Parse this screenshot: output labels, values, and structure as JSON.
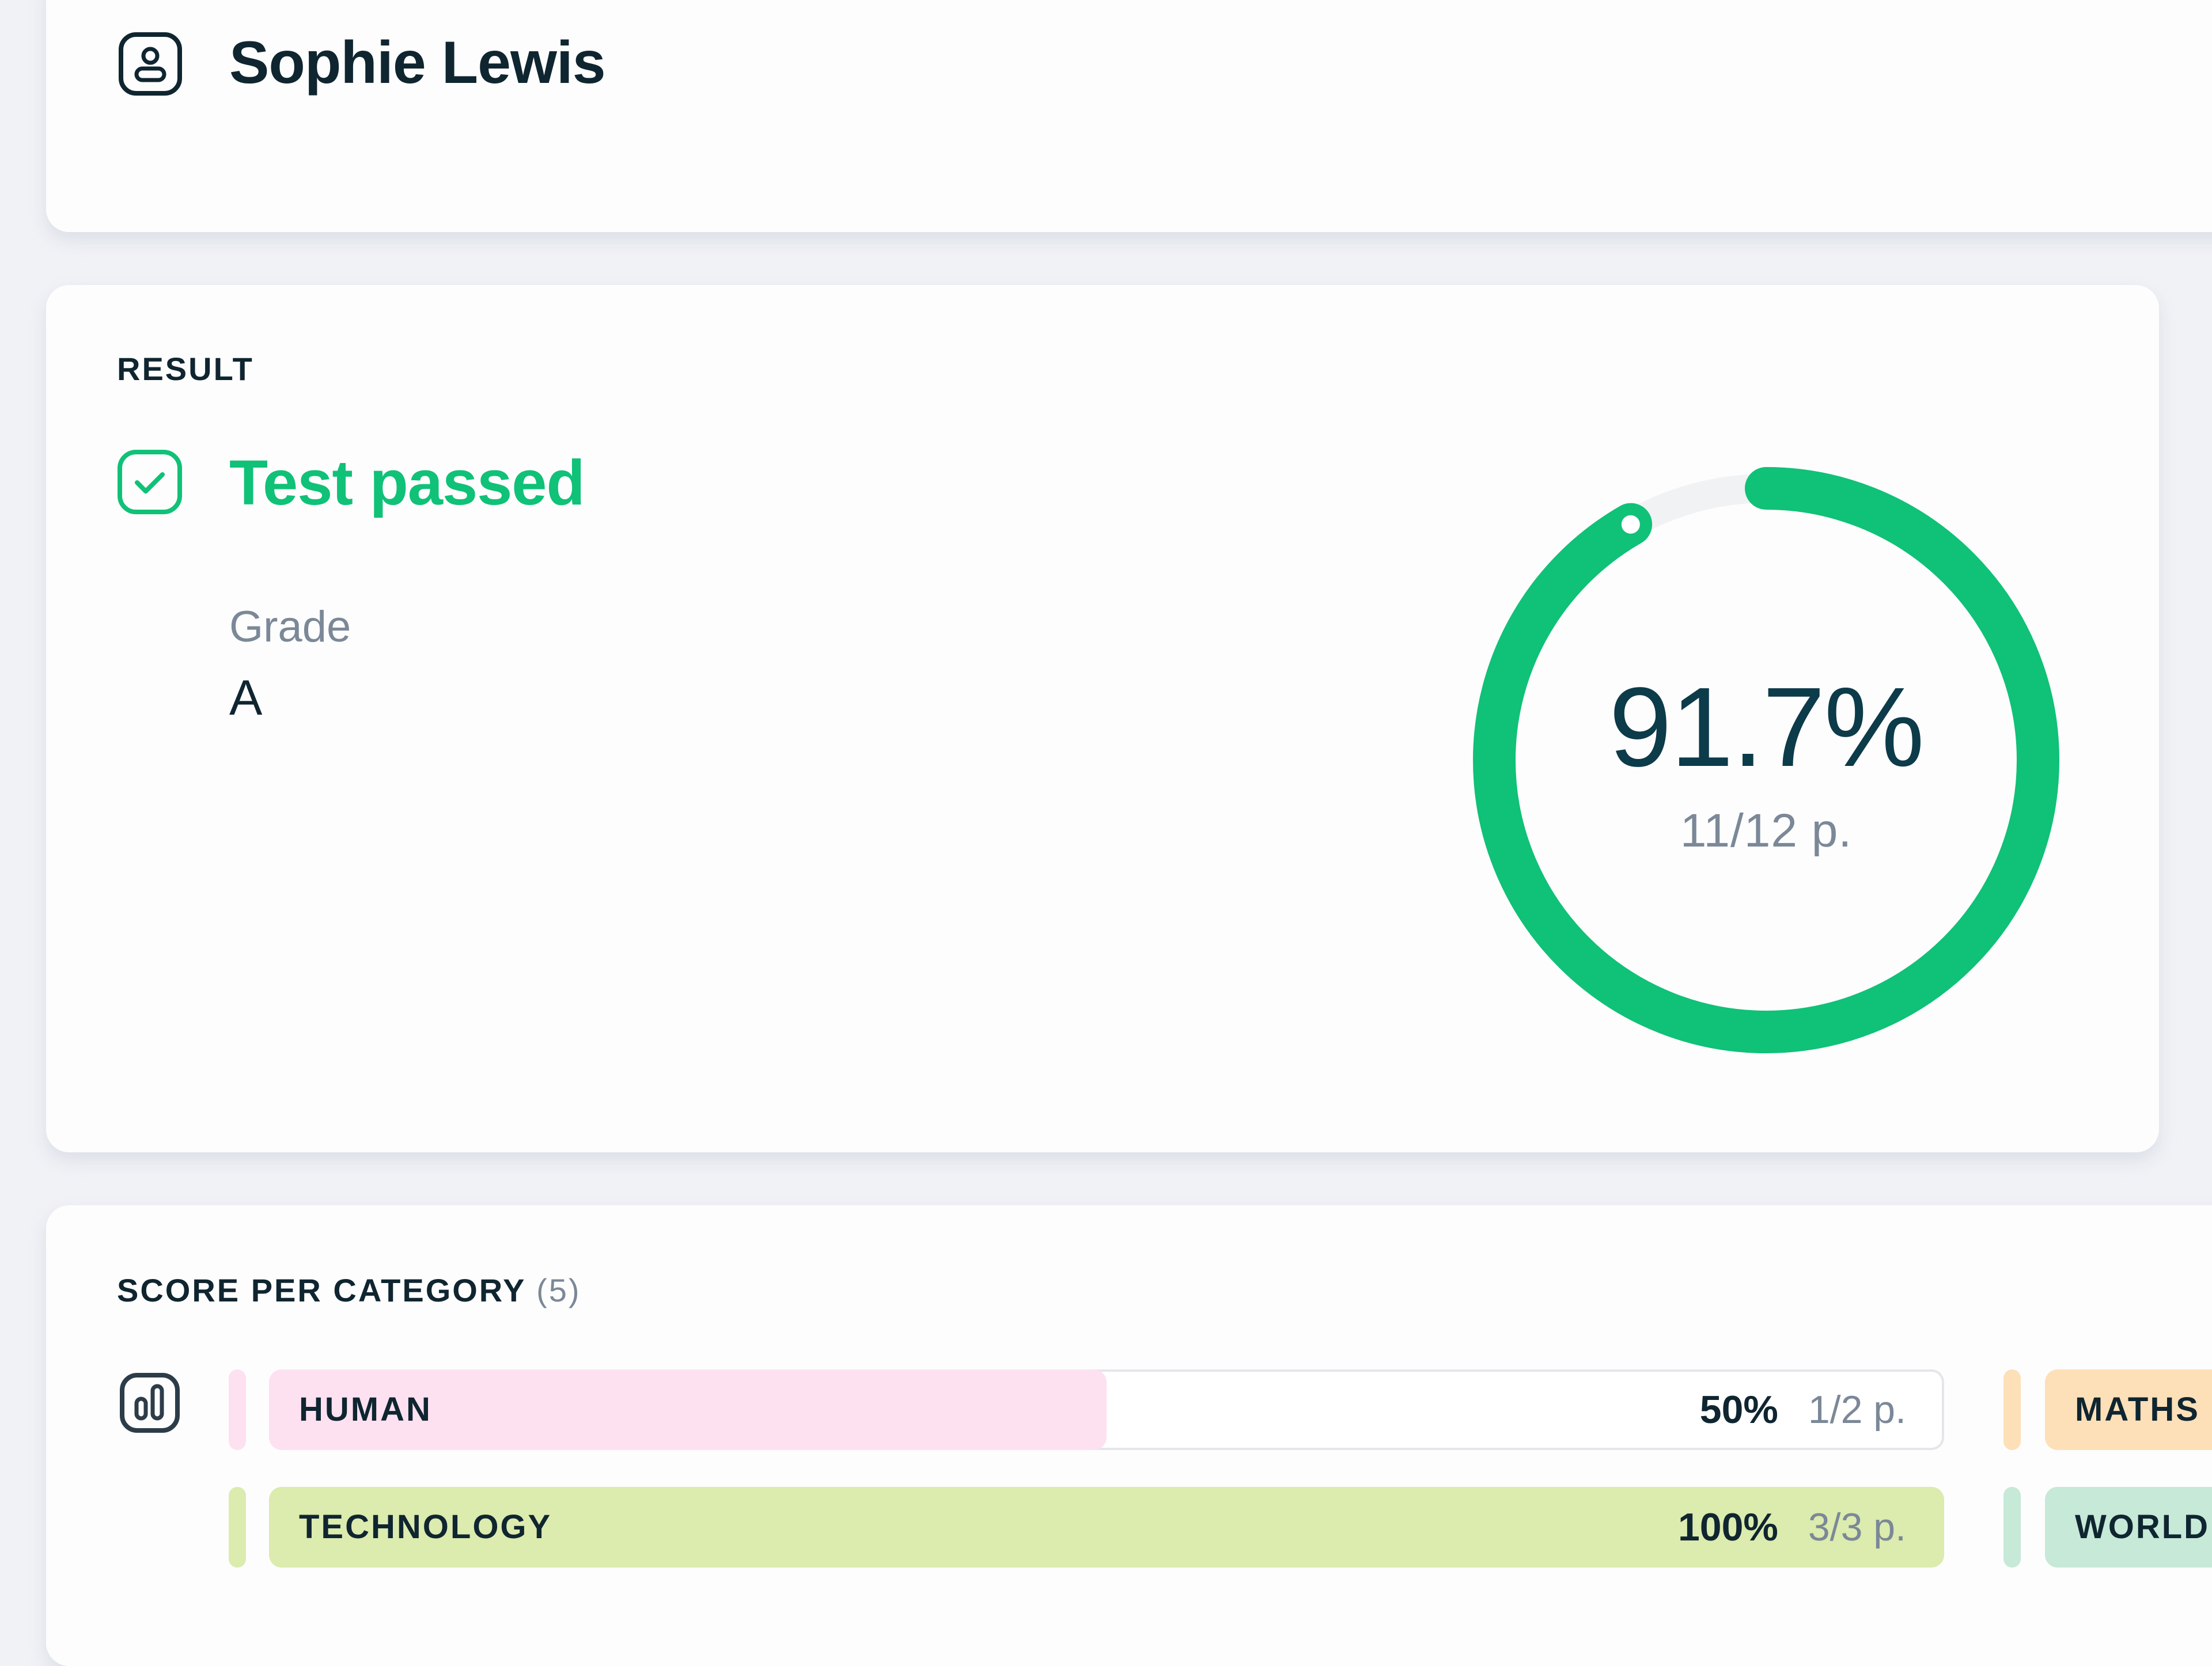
{
  "student": {
    "name": "Sophie Lewis",
    "icon": "user-badge-icon"
  },
  "result": {
    "section_label": "RESULT",
    "status_icon": "check-square-icon",
    "status_text": "Test passed",
    "grade_label": "Grade",
    "grade_value": "A",
    "percent_text": "91.7%",
    "points_text": "11/12 p.",
    "percent": 91.7,
    "colors": {
      "accent": "#10c178",
      "track": "#f0f2f4",
      "percent_text": "#0c3b4a"
    }
  },
  "categories": {
    "heading": "SCORE PER CATEGORY",
    "count": "(5)",
    "icon": "bar-chart-icon",
    "items": [
      {
        "label": "HUMAN",
        "percent_text": "50%",
        "points_text": "1/2 p.",
        "percent": 50,
        "color": "#fde1f1"
      },
      {
        "label": "TECHNOLOGY",
        "percent_text": "100%",
        "points_text": "3/3 p.",
        "percent": 100,
        "color": "#dcebae"
      },
      {
        "label": "MATHS",
        "percent_text": "",
        "points_text": "",
        "percent": null,
        "color": "#fde0b8"
      },
      {
        "label": "WORLD",
        "percent_text": "",
        "points_text": "",
        "percent": null,
        "color": "#c6e9d8"
      }
    ]
  },
  "chart_data": {
    "type": "bar",
    "title": "SCORE PER CATEGORY (5)",
    "categories": [
      "HUMAN",
      "TECHNOLOGY"
    ],
    "values": [
      50,
      100
    ],
    "points": [
      "1/2",
      "3/3"
    ],
    "overall": {
      "percent": 91.7,
      "points": "11/12"
    },
    "ylim": [
      0,
      100
    ]
  }
}
